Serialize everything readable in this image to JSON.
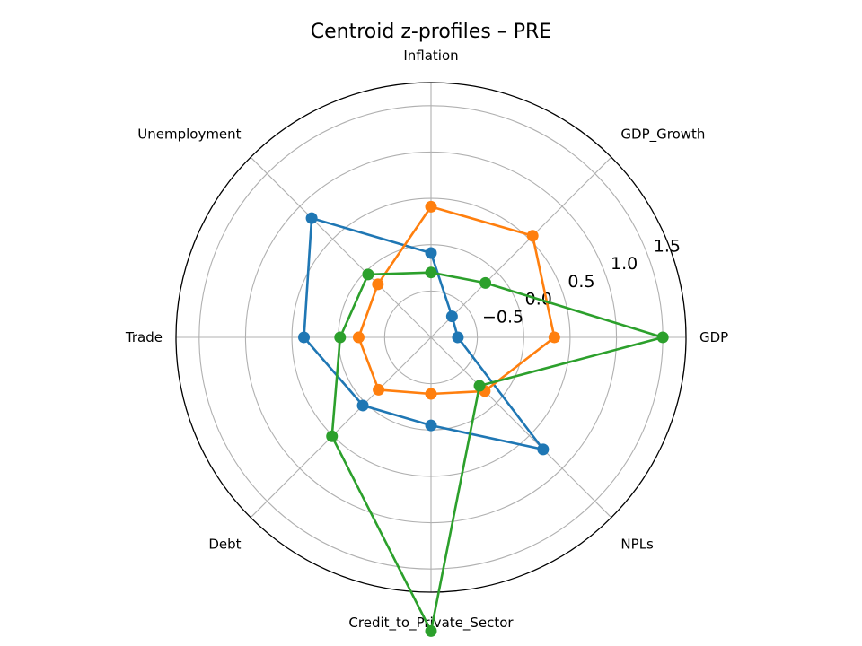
{
  "chart_data": {
    "type": "radar",
    "title": "Centroid z-profiles – PRE",
    "axes": [
      "GDP",
      "GDP_Growth",
      "Inflation",
      "Unemployment",
      "Trade",
      "Debt",
      "Credit_to_Private_Sector",
      "NPLs"
    ],
    "r_ticks": [
      -0.5,
      0.0,
      0.5,
      1.0,
      1.5
    ],
    "r_tick_labels": [
      "−0.5",
      "0.0",
      "0.5",
      "1.0",
      "1.5"
    ],
    "rlim": [
      -1.0,
      1.75
    ],
    "grid": true,
    "series": [
      {
        "color": "#1f77b4",
        "values": [
          -0.71,
          -0.68,
          -0.09,
          0.82,
          0.37,
          0.04,
          -0.05,
          0.71
        ]
      },
      {
        "color": "#ff7f0e",
        "values": [
          0.33,
          0.55,
          0.41,
          -0.19,
          -0.22,
          -0.2,
          -0.39,
          -0.18
        ]
      },
      {
        "color": "#2ca02c",
        "values": [
          1.5,
          -0.17,
          -0.3,
          -0.04,
          -0.02,
          0.51,
          2.17,
          -0.26
        ]
      }
    ]
  }
}
